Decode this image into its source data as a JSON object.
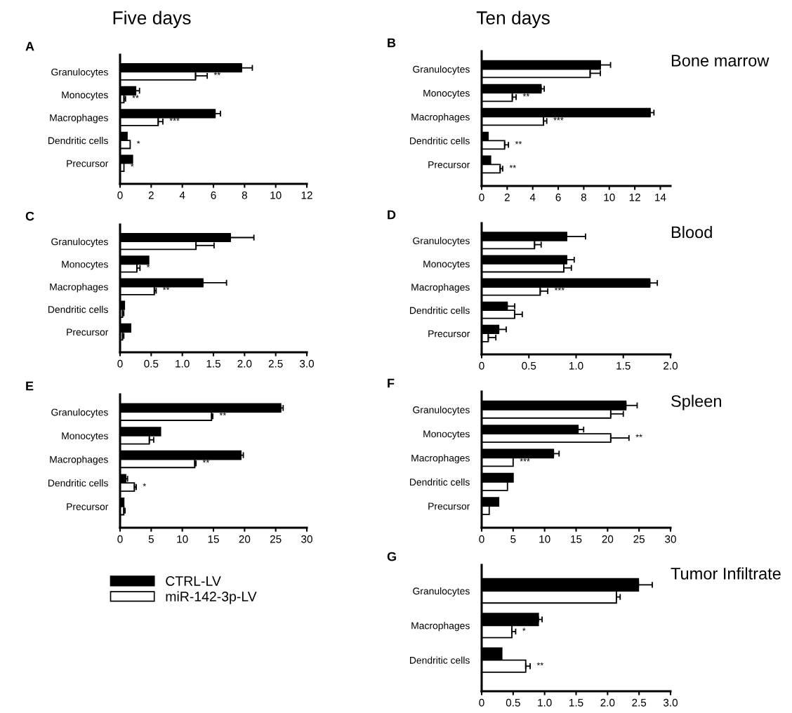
{
  "chart_data": [
    {
      "type": "bar",
      "orientation": "horizontal",
      "title": "A",
      "subtitle": "Five days",
      "categories": [
        "Granulocytes",
        "Monocytes",
        "Macrophages",
        "Dendritic cells",
        "Precursor"
      ],
      "xlim": [
        0,
        12
      ],
      "xticks": [
        0,
        2,
        4,
        6,
        8,
        10,
        12
      ],
      "legend": false,
      "series": [
        {
          "color": "#000000",
          "values": [
            7.8,
            1.0,
            6.1,
            0.45,
            0.8
          ],
          "errors": [
            0.7,
            0.25,
            0.35,
            null,
            null
          ]
        },
        {
          "color": "#ffffff",
          "values": [
            4.85,
            0.25,
            2.45,
            0.65,
            0.25
          ],
          "errors": [
            0.75,
            0.1,
            0.3,
            null,
            null
          ],
          "value_labels": [
            "**",
            "**",
            "***",
            "*",
            "*"
          ]
        }
      ]
    },
    {
      "type": "bar",
      "orientation": "horizontal",
      "title": "B",
      "subtitle": "Ten days",
      "annotations": [
        "Bone marrow"
      ],
      "categories": [
        "Granulocytes",
        "Monocytes",
        "Macrophages",
        "Dendritic cells",
        "Precursor"
      ],
      "xlim": [
        0,
        14.8
      ],
      "xticks": [
        0,
        2,
        4,
        6,
        8,
        10,
        12,
        14
      ],
      "legend": false,
      "series": [
        {
          "color": "#000000",
          "values": [
            9.3,
            4.65,
            13.2,
            0.5,
            0.7
          ],
          "errors": [
            0.8,
            0.25,
            0.3,
            null,
            null
          ]
        },
        {
          "color": "#ffffff",
          "values": [
            8.5,
            2.4,
            4.85,
            1.8,
            1.45
          ],
          "errors": [
            0.8,
            0.3,
            0.25,
            0.3,
            0.2
          ],
          "value_labels": [
            null,
            "**",
            "***",
            "**",
            "**"
          ]
        }
      ]
    },
    {
      "type": "bar",
      "orientation": "horizontal",
      "title": "C",
      "categories": [
        "Granulocytes",
        "Monocytes",
        "Macrophages",
        "Dendritic cells",
        "Precursor"
      ],
      "xlim": [
        0,
        3
      ],
      "xticks": [
        0,
        0.5,
        {
          "value": 1,
          "label": "1.0"
        },
        1.5,
        {
          "value": 2,
          "label": "2.0"
        },
        2.5,
        {
          "value": 3,
          "label": "3.0"
        }
      ],
      "legend": false,
      "series": [
        {
          "color": "#000000",
          "values": [
            1.77,
            0.46,
            1.33,
            0.07,
            0.17
          ],
          "errors": [
            0.38,
            null,
            0.38,
            null,
            null
          ]
        },
        {
          "color": "#ffffff",
          "values": [
            1.22,
            0.27,
            0.55,
            0.04,
            0.04
          ],
          "errors": [
            0.29,
            0.05,
            0.03,
            0.02,
            0.02
          ],
          "value_labels": [
            null,
            "*",
            "**",
            null,
            null
          ]
        }
      ]
    },
    {
      "type": "bar",
      "orientation": "horizontal",
      "title": "D",
      "annotations": [
        "Blood"
      ],
      "categories": [
        "Granulocytes",
        "Monocytes",
        "Macrophages",
        "Dendritic cells",
        "Precursor"
      ],
      "xlim": [
        0,
        2
      ],
      "xticks": [
        0,
        0.5,
        {
          "value": 1,
          "label": "1.0"
        },
        1.5,
        {
          "value": 2,
          "label": "2.0"
        }
      ],
      "legend": false,
      "series": [
        {
          "color": "#000000",
          "values": [
            0.9,
            0.9,
            1.78,
            0.27,
            0.18
          ],
          "errors": [
            0.2,
            0.08,
            0.08,
            0.08,
            0.08
          ]
        },
        {
          "color": "#ffffff",
          "values": [
            0.56,
            0.87,
            0.62,
            0.35,
            0.07
          ],
          "errors": [
            0.07,
            0.08,
            0.08,
            0.08,
            0.08
          ],
          "value_labels": [
            null,
            null,
            "***",
            null,
            null
          ]
        }
      ]
    },
    {
      "type": "bar",
      "orientation": "horizontal",
      "title": "E",
      "categories": [
        "Granulocytes",
        "Monocytes",
        "Macrophages",
        "Dendritic cells",
        "Precursor"
      ],
      "xlim": [
        0,
        30
      ],
      "xticks": [
        0,
        5,
        10,
        15,
        20,
        25,
        30
      ],
      "legend": "bottom",
      "series": [
        {
          "name": "CTRL-LV",
          "color": "#000000",
          "values": [
            25.8,
            6.5,
            19.4,
            0.9,
            0.6
          ],
          "errors": [
            0.4,
            null,
            0.4,
            0.3,
            null
          ]
        },
        {
          "name": "miR-142-3p-LV",
          "color": "#ffffff",
          "values": [
            14.7,
            4.7,
            12.0,
            2.3,
            0.6
          ],
          "errors": [
            0.2,
            0.7,
            0.2,
            0.3,
            0.2
          ],
          "value_labels": [
            "**",
            null,
            "**",
            "*",
            null
          ]
        }
      ]
    },
    {
      "type": "bar",
      "orientation": "horizontal",
      "title": "F",
      "annotations": [
        "Spleen"
      ],
      "categories": [
        "Granulocytes",
        "Monocytes",
        "Macrophages",
        "Dendritic cells",
        "Precursor"
      ],
      "xlim": [
        0,
        30
      ],
      "xticks": [
        0,
        5,
        10,
        15,
        20,
        25,
        30
      ],
      "legend": false,
      "series": [
        {
          "color": "#000000",
          "values": [
            22.9,
            15.3,
            11.4,
            5.0,
            2.7
          ],
          "errors": [
            1.8,
            0.9,
            0.9,
            null,
            null
          ]
        },
        {
          "color": "#ffffff",
          "values": [
            20.5,
            20.5,
            5.0,
            4.1,
            1.2
          ],
          "errors": [
            2.0,
            2.9,
            null,
            null,
            null
          ],
          "value_labels": [
            null,
            "**",
            "***",
            null,
            null
          ]
        }
      ]
    },
    {
      "type": "bar",
      "orientation": "horizontal",
      "title": "G",
      "annotations": [
        "Tumor Infiltrate"
      ],
      "categories": [
        "Granulocytes",
        "Macrophages",
        "Dendritic cells"
      ],
      "xlim": [
        0,
        3
      ],
      "xticks": [
        0,
        0.5,
        {
          "value": 1,
          "label": "1.0"
        },
        1.5,
        {
          "value": 2,
          "label": "2.0"
        },
        2.5,
        {
          "value": 3,
          "label": "3.0"
        }
      ],
      "legend": false,
      "series": [
        {
          "color": "#000000",
          "values": [
            2.49,
            0.9,
            0.32
          ],
          "errors": [
            0.22,
            0.06,
            null
          ]
        },
        {
          "color": "#ffffff",
          "values": [
            2.14,
            0.48,
            0.7
          ],
          "errors": [
            0.06,
            0.06,
            0.07
          ],
          "value_labels": [
            null,
            "*",
            "**"
          ]
        }
      ]
    }
  ]
}
